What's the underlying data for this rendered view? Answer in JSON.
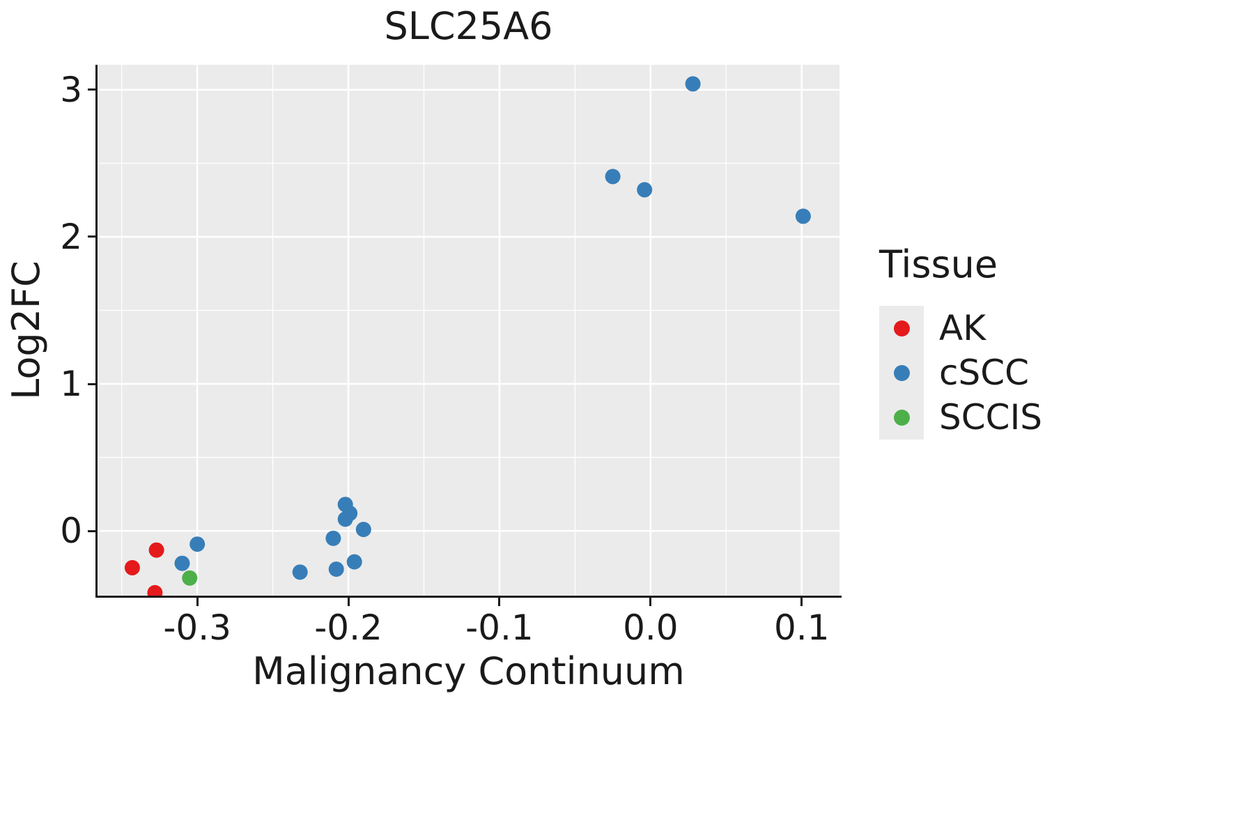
{
  "chart_data": {
    "type": "scatter",
    "title": "SLC25A6",
    "xlabel": "Malignancy Continuum",
    "ylabel": "Log2FC",
    "legend_title": "Tissue",
    "legend_position": "right",
    "grid": true,
    "panel_bg": "#EBEBEB",
    "grid_color": "#FFFFFF",
    "text_color": "#1A1A1A",
    "xlim": [
      -0.366,
      0.125
    ],
    "ylim": [
      -0.44,
      3.17
    ],
    "x_ticks": [
      -0.3,
      -0.2,
      -0.1,
      0.0,
      0.1
    ],
    "x_tick_labels": [
      "-0.3",
      "-0.2",
      "-0.1",
      "0.0",
      "0.1"
    ],
    "y_ticks": [
      0,
      1,
      2,
      3
    ],
    "y_tick_labels": [
      "0",
      "1",
      "2",
      "3"
    ],
    "point_radius": 11,
    "series": [
      {
        "name": "AK",
        "color": "#E41A1C",
        "points": [
          [
            -0.343,
            -0.25
          ],
          [
            -0.327,
            -0.13
          ],
          [
            -0.328,
            -0.42
          ]
        ]
      },
      {
        "name": "cSCC",
        "color": "#377EB8",
        "points": [
          [
            -0.31,
            -0.22
          ],
          [
            -0.3,
            -0.09
          ],
          [
            -0.232,
            -0.28
          ],
          [
            -0.21,
            -0.05
          ],
          [
            -0.208,
            -0.26
          ],
          [
            -0.202,
            0.18
          ],
          [
            -0.202,
            0.08
          ],
          [
            -0.199,
            0.12
          ],
          [
            -0.196,
            -0.21
          ],
          [
            -0.19,
            0.01
          ],
          [
            -0.025,
            2.41
          ],
          [
            -0.004,
            2.32
          ],
          [
            0.028,
            3.04
          ],
          [
            0.101,
            2.14
          ]
        ]
      },
      {
        "name": "SCCIS",
        "color": "#4DAF4A",
        "points": [
          [
            -0.305,
            -0.32
          ]
        ]
      }
    ]
  }
}
